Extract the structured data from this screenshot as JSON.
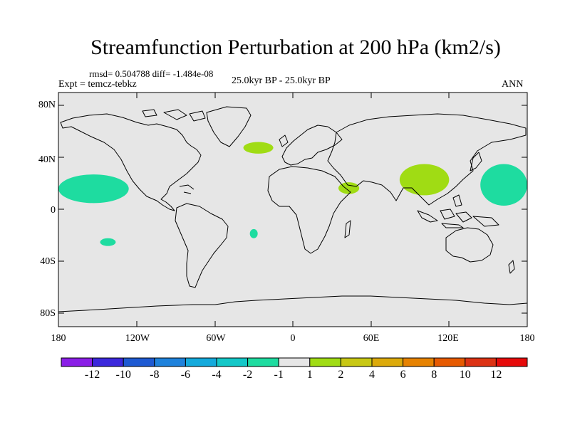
{
  "title": "Streamfunction Perturbation at 200 hPa (km2/s)",
  "stats": "rmsd= 0.504788 diff= -1.484e-08",
  "experiment": "Expt = temcz-tebkz",
  "period": "25.0kyr BP - 25.0kyr BP",
  "season": "ANN",
  "lat_labels": [
    "80N",
    "40N",
    "0",
    "40S",
    "80S"
  ],
  "lon_labels": [
    "180",
    "120W",
    "60W",
    "0",
    "60E",
    "120E",
    "180"
  ],
  "colorbar": {
    "labels": [
      "-12",
      "-10",
      "-8",
      "-6",
      "-4",
      "-2",
      "-1",
      "1",
      "2",
      "4",
      "6",
      "8",
      "10",
      "12"
    ],
    "colors": [
      "#8a1ee6",
      "#3c28dc",
      "#1e5ad2",
      "#1e82dc",
      "#14aadc",
      "#14c8c8",
      "#1edca0",
      "#e6e6e6",
      "#a0dc14",
      "#c8c814",
      "#dcaa0a",
      "#e68200",
      "#e65a00",
      "#dc3214",
      "#e60a0a"
    ]
  },
  "map": {
    "land_color": "#e6e6e6",
    "positive_color": "#a0dc14",
    "negative_color": "#1edca0",
    "anomalies": [
      {
        "name": "north-pacific-east-negative",
        "sign": "negative",
        "lon": [
          -180,
          -126
        ],
        "lat": [
          5,
          27
        ]
      },
      {
        "name": "west-pacific-negative",
        "sign": "negative",
        "lon": [
          144,
          180
        ],
        "lat": [
          3,
          35
        ]
      },
      {
        "name": "south-pacific-negative",
        "sign": "negative",
        "lon": [
          -148,
          -136
        ],
        "lat": [
          -28,
          -22
        ]
      },
      {
        "name": "south-atlantic-negative",
        "sign": "negative",
        "lon": [
          -33,
          -27
        ],
        "lat": [
          -22,
          -15
        ]
      },
      {
        "name": "north-atlantic-positive",
        "sign": "positive",
        "lon": [
          -38,
          -15
        ],
        "lat": [
          43,
          52
        ]
      },
      {
        "name": "arabia-positive",
        "sign": "positive",
        "lon": [
          35,
          51
        ],
        "lat": [
          12,
          21
        ]
      },
      {
        "name": "tibet-positive",
        "sign": "positive",
        "lon": [
          82,
          120
        ],
        "lat": [
          11,
          35
        ]
      }
    ]
  }
}
